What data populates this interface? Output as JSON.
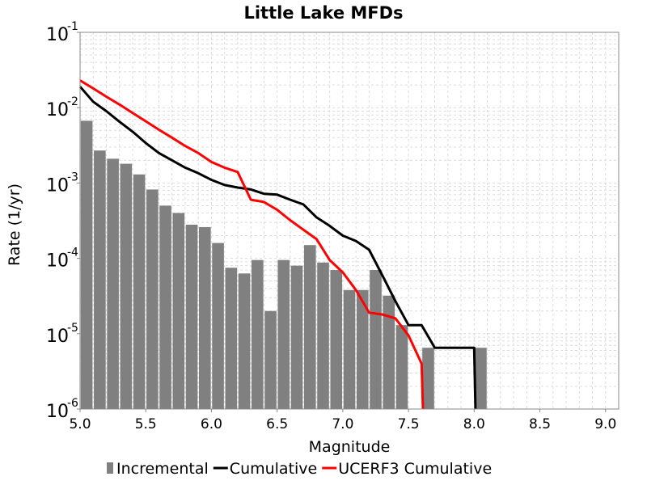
{
  "chart_data": {
    "type": "bar",
    "title": "Little Lake MFDs",
    "xlabel": "Magnitude",
    "ylabel": "Rate (1/yr)",
    "xlim": [
      5.0,
      9.1
    ],
    "ylim": [
      1e-06,
      0.1
    ],
    "yscale": "log",
    "grid": true,
    "legend_position": "bottom",
    "xticks": [
      "5.0",
      "5.5",
      "6.0",
      "6.5",
      "7.0",
      "7.5",
      "8.0",
      "8.5",
      "9.0"
    ],
    "yticks": [
      {
        "base": "10",
        "exp": "-1"
      },
      {
        "base": "10",
        "exp": "-2"
      },
      {
        "base": "10",
        "exp": "-3"
      },
      {
        "base": "10",
        "exp": "-4"
      },
      {
        "base": "10",
        "exp": "-5"
      },
      {
        "base": "10",
        "exp": "-6"
      }
    ],
    "bar_width": 0.09,
    "series": [
      {
        "name": "Incremental",
        "kind": "bar",
        "color": "#808080",
        "x": [
          5.05,
          5.15,
          5.25,
          5.35,
          5.45,
          5.55,
          5.65,
          5.75,
          5.85,
          5.95,
          6.05,
          6.15,
          6.25,
          6.35,
          6.45,
          6.55,
          6.65,
          6.75,
          6.85,
          6.95,
          7.05,
          7.15,
          7.25,
          7.35,
          7.45,
          7.65,
          8.05
        ],
        "values": [
          0.0067,
          0.0027,
          0.0021,
          0.0018,
          0.0013,
          0.00082,
          0.0005,
          0.0004,
          0.00028,
          0.00026,
          0.00016,
          7.5e-05,
          6.3e-05,
          9.5e-05,
          2e-05,
          9.5e-05,
          8e-05,
          0.00015,
          8.8e-05,
          7e-05,
          3.8e-05,
          3.8e-05,
          7e-05,
          3.2e-05,
          1.3e-05,
          6.5e-06,
          6.5e-06
        ]
      },
      {
        "name": "Cumulative",
        "kind": "line",
        "color": "#000000",
        "x": [
          5.0,
          5.1,
          5.2,
          5.3,
          5.4,
          5.5,
          5.6,
          5.7,
          5.8,
          5.9,
          6.0,
          6.1,
          6.2,
          6.3,
          6.4,
          6.5,
          6.6,
          6.7,
          6.8,
          6.9,
          7.0,
          7.1,
          7.2,
          7.3,
          7.4,
          7.5,
          7.6,
          7.7,
          7.8,
          7.9,
          8.0,
          8.01
        ],
        "values": [
          0.019,
          0.012,
          0.009,
          0.0065,
          0.0048,
          0.0034,
          0.0025,
          0.002,
          0.0016,
          0.00135,
          0.0011,
          0.00094,
          0.00087,
          0.00082,
          0.00072,
          0.0007,
          0.0006,
          0.00052,
          0.00035,
          0.00027,
          0.0002,
          0.00017,
          0.00013,
          6e-05,
          2.7e-05,
          1.3e-05,
          1.3e-05,
          6.5e-06,
          6.5e-06,
          6.5e-06,
          6.5e-06,
          1e-06
        ]
      },
      {
        "name": "UCERF3 Cumulative",
        "kind": "line",
        "color": "#ff0000",
        "x": [
          5.0,
          5.1,
          5.2,
          5.3,
          5.4,
          5.5,
          5.6,
          5.7,
          5.8,
          5.9,
          6.0,
          6.1,
          6.2,
          6.3,
          6.4,
          6.5,
          6.6,
          6.7,
          6.8,
          6.9,
          7.0,
          7.1,
          7.2,
          7.3,
          7.4,
          7.5,
          7.6,
          7.61
        ],
        "values": [
          0.023,
          0.018,
          0.014,
          0.011,
          0.0085,
          0.0066,
          0.0051,
          0.004,
          0.0031,
          0.0025,
          0.0019,
          0.0016,
          0.0014,
          0.0006,
          0.00056,
          0.00044,
          0.00032,
          0.00024,
          0.00018,
          9.5e-05,
          6.5e-05,
          3.8e-05,
          1.9e-05,
          1.8e-05,
          1.6e-05,
          9.5e-06,
          4e-06,
          1e-06
        ]
      }
    ]
  }
}
